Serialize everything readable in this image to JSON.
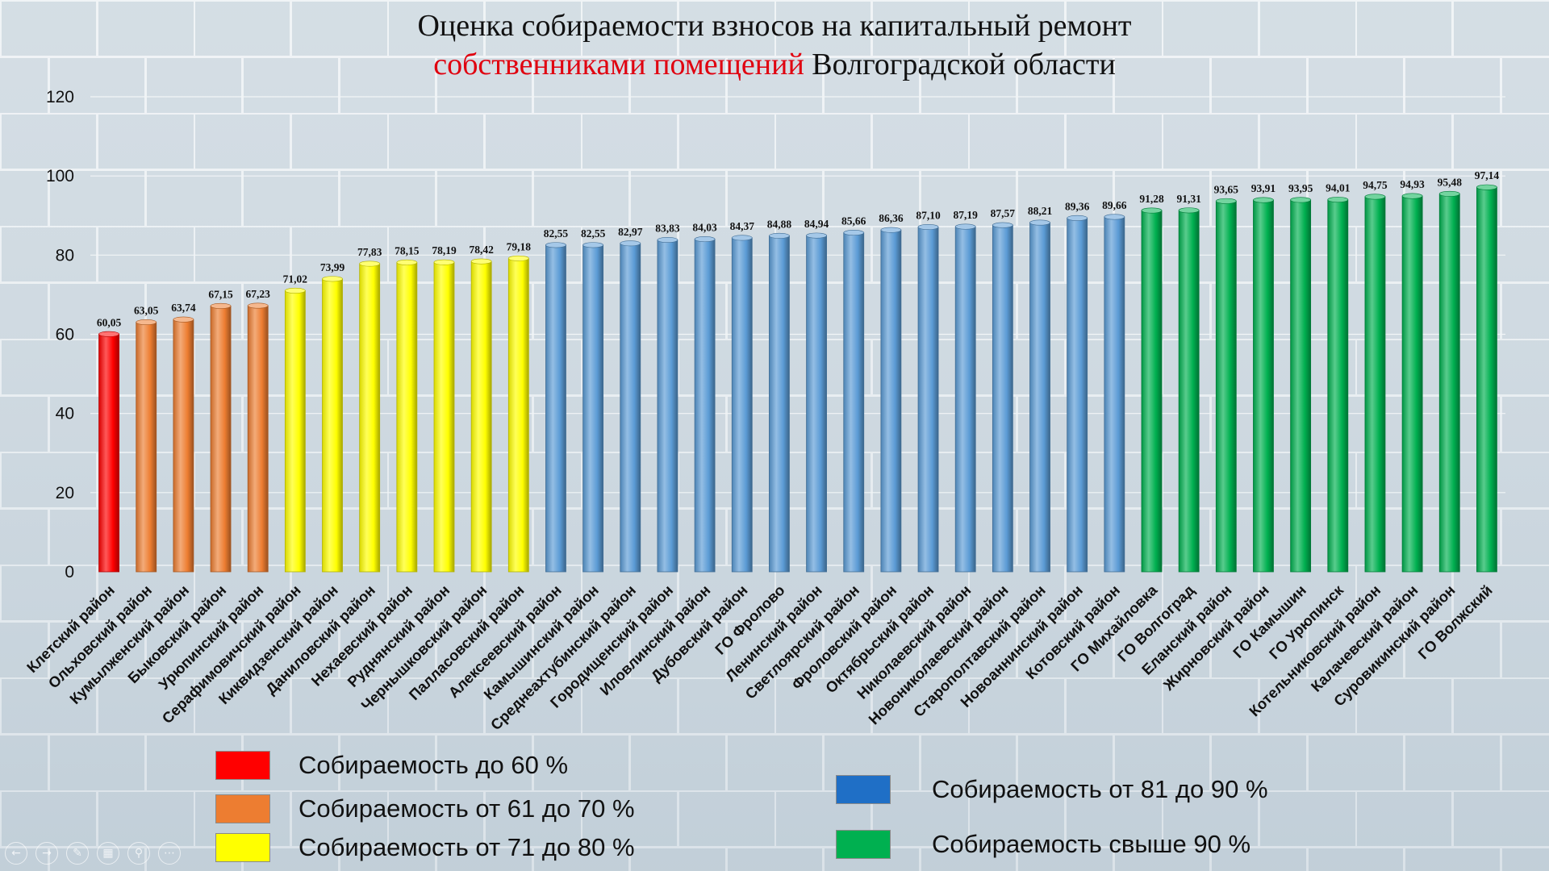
{
  "title": {
    "line1": "Оценка собираемости взносов на капитальный ремонт",
    "line2_highlight": "собственниками помещений",
    "line2_rest": " Волгоградской области"
  },
  "colors": {
    "red": "#ff0000",
    "orange": "#ed7d31",
    "yellow": "#ffff00",
    "blue": "#5b9bd5",
    "green": "#00b050",
    "title_highlight": "#e0000f"
  },
  "legend": [
    {
      "label": "Собираемость до 60 %",
      "color": "#ff0000"
    },
    {
      "label": "Собираемость от 61 до 70 %",
      "color": "#ed7d31"
    },
    {
      "label": "Собираемость от 71 до 80 %",
      "color": "#ffff00"
    },
    {
      "label": "Собираемость от 81 до 90 %",
      "color": "#1f6fc6"
    },
    {
      "label": "Собираемость свыше 90 %",
      "color": "#00b050"
    }
  ],
  "toolbar_icons": [
    "back-icon",
    "forward-icon",
    "pen-icon",
    "slides-icon",
    "zoom-icon",
    "more-icon"
  ],
  "chart_data": {
    "type": "bar",
    "title": "Оценка собираемости взносов на капитальный ремонт собственниками помещений Волгоградской области",
    "xlabel": "",
    "ylabel": "",
    "ylim": [
      0,
      120
    ],
    "yticks": [
      0,
      20,
      40,
      60,
      80,
      100,
      120
    ],
    "grid": true,
    "categories": [
      "Клетский район",
      "Ольховский район",
      "Кумылженский район",
      "Быковский район",
      "Урюпинский район",
      "Серафимовичский район",
      "Киквидзенский район",
      "Даниловский район",
      "Нехаевский район",
      "Руднянский район",
      "Чернышковский район",
      "Палласовский район",
      "Алексеевский район",
      "Камышинский район",
      "Среднеахтубинский район",
      "Городищенский район",
      "Иловлинский район",
      "Дубовский район",
      "ГО Фролово",
      "Ленинский район",
      "Светлоярский район",
      "Фроловский район",
      "Октябрьский район",
      "Николаевский район",
      "Новониколаевский район",
      "Старополтавский район",
      "Новоаннинский район",
      "Котовский район",
      "ГО Михайловка",
      "ГО Волгоград",
      "Еланский район",
      "Жирновский район",
      "ГО Камышин",
      "ГО Урюпинск",
      "Котельниковский район",
      "Калачевский район",
      "Суровикинский район",
      "ГО Волжский"
    ],
    "values": [
      60.05,
      63.05,
      63.74,
      67.15,
      67.23,
      71.02,
      73.99,
      77.83,
      78.15,
      78.19,
      78.42,
      79.18,
      82.55,
      82.55,
      82.97,
      83.83,
      84.03,
      84.37,
      84.88,
      84.94,
      85.66,
      86.36,
      87.1,
      87.19,
      87.57,
      88.21,
      89.36,
      89.66,
      91.28,
      91.31,
      93.65,
      93.91,
      93.95,
      94.01,
      94.75,
      94.93,
      95.48,
      97.14
    ],
    "value_labels": [
      "60,05",
      "63,05",
      "63,74",
      "67,15",
      "67,23",
      "71,02",
      "73,99",
      "77,83",
      "78,15",
      "78,19",
      "78,42",
      "79,18",
      "82,55",
      "82,55",
      "82,97",
      "83,83",
      "84,03",
      "84,37",
      "84,88",
      "84,94",
      "85,66",
      "86,36",
      "87,10",
      "87,19",
      "87,57",
      "88,21",
      "89,36",
      "89,66",
      "91,28",
      "91,31",
      "93,65",
      "93,91",
      "93,95",
      "94,01",
      "94,75",
      "94,93",
      "95,48",
      "97,14"
    ],
    "bar_colors": [
      "red",
      "orange",
      "orange",
      "orange",
      "orange",
      "yellow",
      "yellow",
      "yellow",
      "yellow",
      "yellow",
      "yellow",
      "yellow",
      "blue",
      "blue",
      "blue",
      "blue",
      "blue",
      "blue",
      "blue",
      "blue",
      "blue",
      "blue",
      "blue",
      "blue",
      "blue",
      "blue",
      "blue",
      "blue",
      "green",
      "green",
      "green",
      "green",
      "green",
      "green",
      "green",
      "green",
      "green",
      "green"
    ]
  }
}
